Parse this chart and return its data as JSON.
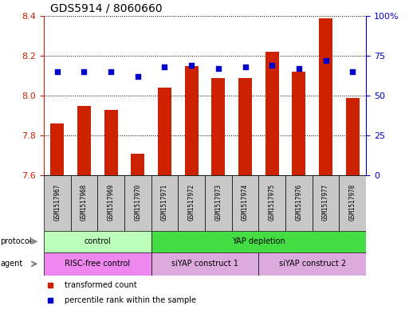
{
  "title": "GDS5914 / 8060660",
  "samples": [
    "GSM1517967",
    "GSM1517968",
    "GSM1517969",
    "GSM1517970",
    "GSM1517971",
    "GSM1517972",
    "GSM1517973",
    "GSM1517974",
    "GSM1517975",
    "GSM1517976",
    "GSM1517977",
    "GSM1517978"
  ],
  "bar_values": [
    7.86,
    7.95,
    7.93,
    7.71,
    8.04,
    8.15,
    8.09,
    8.09,
    8.22,
    8.12,
    8.39,
    7.99
  ],
  "percentile_values": [
    65,
    65,
    65,
    62,
    68,
    69,
    67,
    68,
    69,
    67,
    72,
    65
  ],
  "bar_color": "#cc2200",
  "percentile_color": "#0000cc",
  "ylim_left": [
    7.6,
    8.4
  ],
  "ylim_right": [
    0,
    100
  ],
  "yticks_left": [
    7.6,
    7.8,
    8.0,
    8.2,
    8.4
  ],
  "yticks_right": [
    0,
    25,
    50,
    75,
    100
  ],
  "ytick_labels_right": [
    "0",
    "25",
    "50",
    "75",
    "100%"
  ],
  "protocol_groups": [
    {
      "label": "control",
      "start": 0,
      "end": 4,
      "color": "#bbffbb"
    },
    {
      "label": "YAP depletion",
      "start": 4,
      "end": 12,
      "color": "#44dd44"
    }
  ],
  "agent_groups": [
    {
      "label": "RISC-free control",
      "start": 0,
      "end": 4,
      "color": "#ee88ee"
    },
    {
      "label": "siYAP construct 1",
      "start": 4,
      "end": 8,
      "color": "#ddaadd"
    },
    {
      "label": "siYAP construct 2",
      "start": 8,
      "end": 12,
      "color": "#ddaadd"
    }
  ],
  "legend_items": [
    {
      "label": "transformed count",
      "color": "#cc2200"
    },
    {
      "label": "percentile rank within the sample",
      "color": "#0000cc"
    }
  ],
  "bar_width": 0.5,
  "sample_box_color": "#c8c8c8",
  "arrow_color": "#888888",
  "label_fontsize": 7,
  "sample_fontsize": 5.5,
  "title_fontsize": 10,
  "ytick_fontsize": 8
}
